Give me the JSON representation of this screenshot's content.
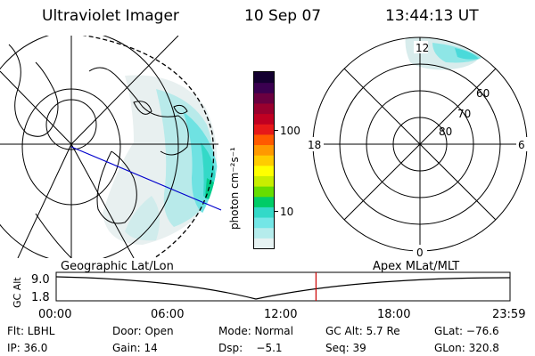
{
  "header": {
    "instrument": "Ultraviolet Imager",
    "date": "10 Sep 07",
    "time": "13:44:13 UT"
  },
  "colorbar": {
    "unit_label": "photon cm⁻²s⁻¹",
    "ticks": [
      "100",
      "10"
    ],
    "colors": [
      "#e6f2f2",
      "#b5ecec",
      "#73e6e6",
      "#33d9c8",
      "#00cc66",
      "#66dd00",
      "#c8ee00",
      "#ffff00",
      "#ffcc00",
      "#ff9900",
      "#ff5a00",
      "#e61919",
      "#c00022",
      "#99002e",
      "#6a0040",
      "#3a0050",
      "#140030"
    ]
  },
  "polar_plot": {
    "mlt_labels": {
      "top": "12",
      "left": "18",
      "right": "6",
      "bottom": "0"
    },
    "lat_labels": [
      "60",
      "70",
      "80"
    ]
  },
  "bottom_panel": {
    "left_title": "Geographic Lat/Lon",
    "right_title": "Apex MLat/MLT",
    "y_axis_label": "GC Alt",
    "y_ticks": [
      "9.0",
      "1.8"
    ],
    "x_ticks": [
      "00:00",
      "06:00",
      "12:00",
      "18:00",
      "23:59"
    ],
    "current_time_marker_hours": 13.74,
    "marker_color": "#cc0000"
  },
  "info": {
    "row1": {
      "flt": "Flt: LBHL",
      "door": "Door: Open",
      "mode": "Mode: Normal",
      "gcalt": "GC Alt: 5.7 Re",
      "glat": "GLat: −76.6"
    },
    "row2": {
      "ip": "IP: 36.0",
      "gain": "Gain: 14",
      "dsp": "Dsp:    −5.1",
      "seq": "Seq: 39",
      "glon": "GLon: 320.8"
    }
  }
}
